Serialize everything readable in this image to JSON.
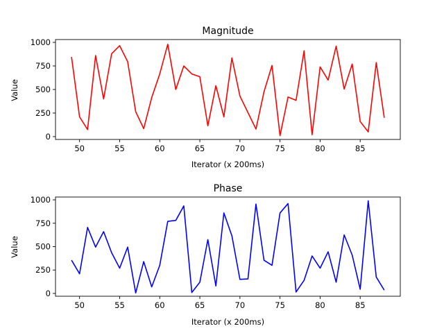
{
  "chart_data": [
    {
      "type": "line",
      "title": "Magnitude",
      "xlabel": "Iterator (x 200ms)",
      "ylabel": "Value",
      "xlim": [
        47,
        90
      ],
      "ylim": [
        -30,
        1030
      ],
      "xticks": [
        50,
        55,
        60,
        65,
        70,
        75,
        80,
        85
      ],
      "yticks": [
        0,
        250,
        500,
        750,
        1000
      ],
      "color": "#ff0000",
      "x": [
        49,
        50,
        51,
        52,
        53,
        54,
        55,
        56,
        57,
        58,
        59,
        60,
        61,
        62,
        63,
        64,
        65,
        66,
        67,
        68,
        69,
        70,
        71,
        72,
        73,
        74,
        75,
        76,
        77,
        78,
        79,
        80,
        81,
        82,
        83,
        84,
        85,
        86,
        87,
        88
      ],
      "values": [
        845,
        210,
        75,
        860,
        400,
        880,
        965,
        795,
        265,
        85,
        415,
        665,
        980,
        500,
        750,
        665,
        635,
        115,
        540,
        210,
        835,
        430,
        255,
        80,
        475,
        755,
        10,
        420,
        385,
        910,
        20,
        740,
        600,
        960,
        505,
        770,
        160,
        50,
        785,
        200
      ]
    },
    {
      "type": "line",
      "title": "Phase",
      "xlabel": "Iterator (x 200ms)",
      "ylabel": "Value",
      "xlim": [
        47,
        90
      ],
      "ylim": [
        -30,
        1030
      ],
      "xticks": [
        50,
        55,
        60,
        65,
        70,
        75,
        80,
        85
      ],
      "yticks": [
        0,
        250,
        500,
        750,
        1000
      ],
      "color": "#0000ff",
      "x": [
        49,
        50,
        51,
        52,
        53,
        54,
        55,
        56,
        57,
        58,
        59,
        60,
        61,
        62,
        63,
        64,
        65,
        66,
        67,
        68,
        69,
        70,
        71,
        72,
        73,
        74,
        75,
        76,
        77,
        78,
        79,
        80,
        81,
        82,
        83,
        84,
        85,
        86,
        87,
        88
      ],
      "values": [
        355,
        210,
        705,
        495,
        660,
        435,
        270,
        495,
        5,
        340,
        70,
        300,
        770,
        780,
        935,
        10,
        120,
        575,
        80,
        860,
        615,
        150,
        155,
        955,
        355,
        300,
        860,
        960,
        15,
        140,
        400,
        270,
        445,
        120,
        625,
        410,
        45,
        990,
        175,
        35
      ]
    }
  ]
}
